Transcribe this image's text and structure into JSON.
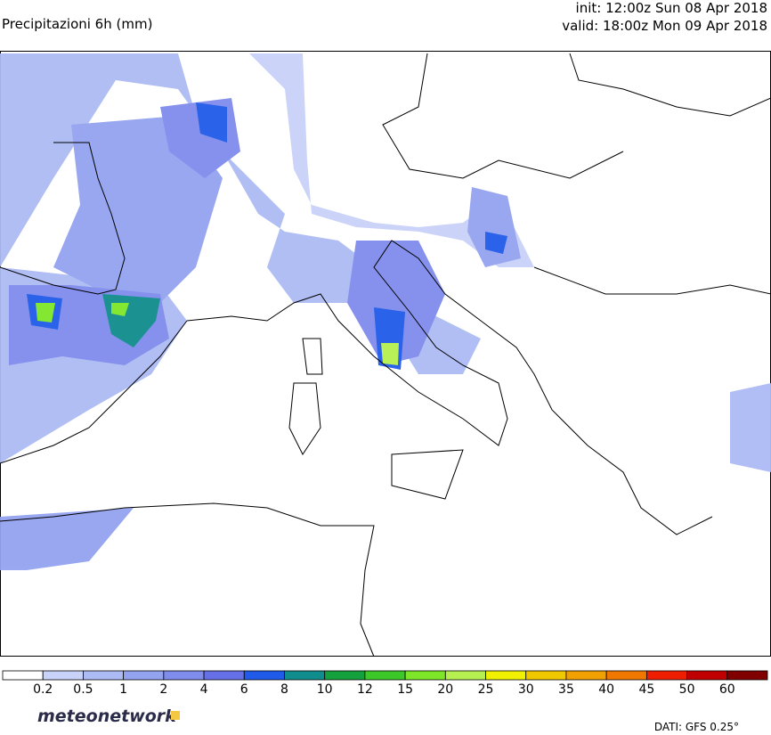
{
  "header": {
    "title": "Precipitazioni 6h (mm)",
    "init": "init: 12:00z Sun 08 Apr 2018",
    "valid": "valid: 18:00z Mon 09 Apr 2018"
  },
  "colorbar": {
    "labels": [
      "0.2",
      "0.5",
      "1",
      "2",
      "4",
      "6",
      "8",
      "10",
      "12",
      "15",
      "20",
      "25",
      "30",
      "35",
      "40",
      "45",
      "50",
      "60"
    ],
    "colors": [
      "#ffffff",
      "#c9d2f8",
      "#adbbf4",
      "#93a3f0",
      "#7f8cec",
      "#6670e6",
      "#1f5ae8",
      "#0f8c8c",
      "#14a03c",
      "#3cc828",
      "#7ee628",
      "#b6f050",
      "#f0f000",
      "#f0c800",
      "#f0a000",
      "#f07800",
      "#f01e00",
      "#c00000",
      "#800000"
    ]
  },
  "footer": {
    "logo": "meteonetwork",
    "source": "DATI: GFS 0.25°"
  }
}
